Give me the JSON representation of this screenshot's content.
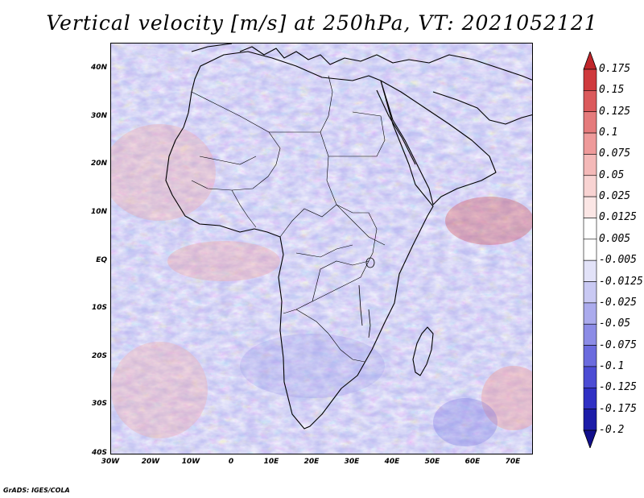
{
  "title": "Vertical velocity [m/s] at 250hPa, VT: 2021052121",
  "credit": "GrADS: IGES/COLA",
  "map": {
    "lat_labels": [
      "40N",
      "30N",
      "20N",
      "10N",
      "EQ",
      "10S",
      "20S",
      "30S",
      "40S"
    ],
    "lon_labels": [
      "30W",
      "20W",
      "10W",
      "0",
      "10E",
      "20E",
      "30E",
      "40E",
      "50E",
      "60E",
      "70E"
    ]
  },
  "colorbar": {
    "labels": [
      "0.175",
      "0.15",
      "0.125",
      "0.1",
      "0.075",
      "0.05",
      "0.025",
      "0.0125",
      "0.005",
      "-0.005",
      "-0.0125",
      "-0.025",
      "-0.05",
      "-0.075",
      "-0.1",
      "-0.125",
      "-0.175",
      "-0.2"
    ],
    "colors": [
      "#c0262b",
      "#cf3a3d",
      "#db5a5c",
      "#e57b7c",
      "#ee9a9a",
      "#f4b9b8",
      "#f8d3d2",
      "#fbe6e5",
      "#ffffff",
      "#ffffff",
      "#e2e2f8",
      "#c9c9f3",
      "#ababed",
      "#8c8ce6",
      "#6b6bde",
      "#4c4cd4",
      "#3030c4",
      "#1c1ca8",
      "#120f8c"
    ]
  }
}
